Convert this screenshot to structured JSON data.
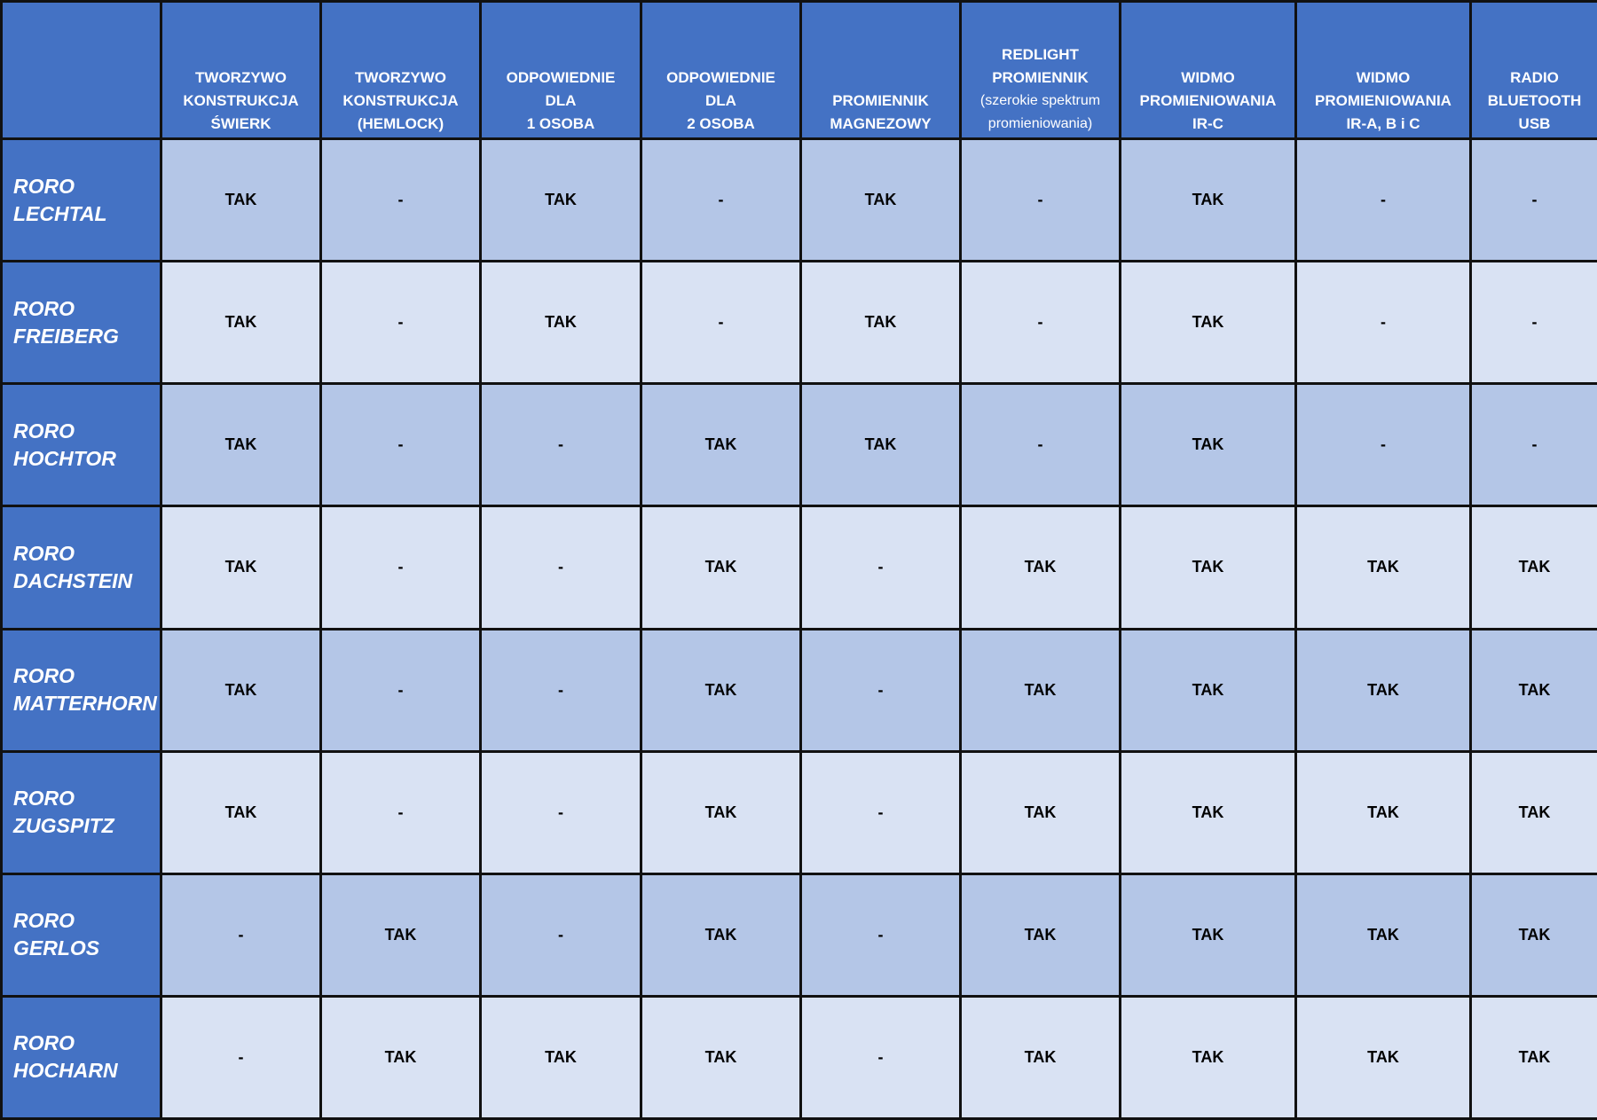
{
  "colors": {
    "header": "#4472C4",
    "row_dark": "#B4C6E7",
    "row_light": "#D9E2F3"
  },
  "headers": [
    {
      "lines": [
        "TWORZYWO",
        "KONSTRUKCJA",
        "ŚWIERK"
      ]
    },
    {
      "lines": [
        "TWORZYWO",
        "KONSTRUKCJA",
        "(HEMLOCK)"
      ]
    },
    {
      "lines": [
        "ODPOWIEDNIE",
        "DLA",
        "1 OSOBA"
      ]
    },
    {
      "lines": [
        "ODPOWIEDNIE",
        "DLA",
        "2 OSOBA"
      ]
    },
    {
      "lines": [
        "PROMIENNIK",
        "MAGNEZOWY"
      ]
    },
    {
      "lines": [
        "REDLIGHT",
        "PROMIENNIK",
        "(szerokie spektrum",
        "promieniowania)"
      ]
    },
    {
      "lines": [
        "WIDMO",
        "PROMIENIOWANIA",
        "IR-C"
      ]
    },
    {
      "lines": [
        "WIDMO",
        "PROMIENIOWANIA",
        "IR-A, B i C"
      ]
    },
    {
      "lines": [
        "RADIO",
        "BLUETOOTH",
        "USB"
      ]
    }
  ],
  "rows": [
    {
      "name": [
        "RORO",
        "LECHTAL"
      ],
      "values": [
        "TAK",
        "-",
        "TAK",
        "-",
        "TAK",
        "-",
        "TAK",
        "-",
        "-"
      ]
    },
    {
      "name": [
        "RORO",
        "FREIBERG"
      ],
      "values": [
        "TAK",
        "-",
        "TAK",
        "-",
        "TAK",
        "-",
        "TAK",
        "-",
        "-"
      ]
    },
    {
      "name": [
        "RORO",
        "HOCHTOR"
      ],
      "values": [
        "TAK",
        "-",
        "-",
        "TAK",
        "TAK",
        "-",
        "TAK",
        "-",
        "-"
      ]
    },
    {
      "name": [
        "RORO",
        "DACHSTEIN"
      ],
      "values": [
        "TAK",
        "-",
        "-",
        "TAK",
        "-",
        "TAK",
        "TAK",
        "TAK",
        "TAK"
      ]
    },
    {
      "name": [
        "RORO",
        "MATTERHORN"
      ],
      "values": [
        "TAK",
        "-",
        "-",
        "TAK",
        "-",
        "TAK",
        "TAK",
        "TAK",
        "TAK"
      ]
    },
    {
      "name": [
        "RORO",
        "ZUGSPITZ"
      ],
      "values": [
        "TAK",
        "-",
        "-",
        "TAK",
        "-",
        "TAK",
        "TAK",
        "TAK",
        "TAK"
      ]
    },
    {
      "name": [
        "RORO",
        "GERLOS"
      ],
      "values": [
        "-",
        "TAK",
        "-",
        "TAK",
        "-",
        "TAK",
        "TAK",
        "TAK",
        "TAK"
      ]
    },
    {
      "name": [
        "RORO",
        "HOCHARN"
      ],
      "values": [
        "-",
        "TAK",
        "TAK",
        "TAK",
        "-",
        "TAK",
        "TAK",
        "TAK",
        "TAK"
      ]
    }
  ]
}
